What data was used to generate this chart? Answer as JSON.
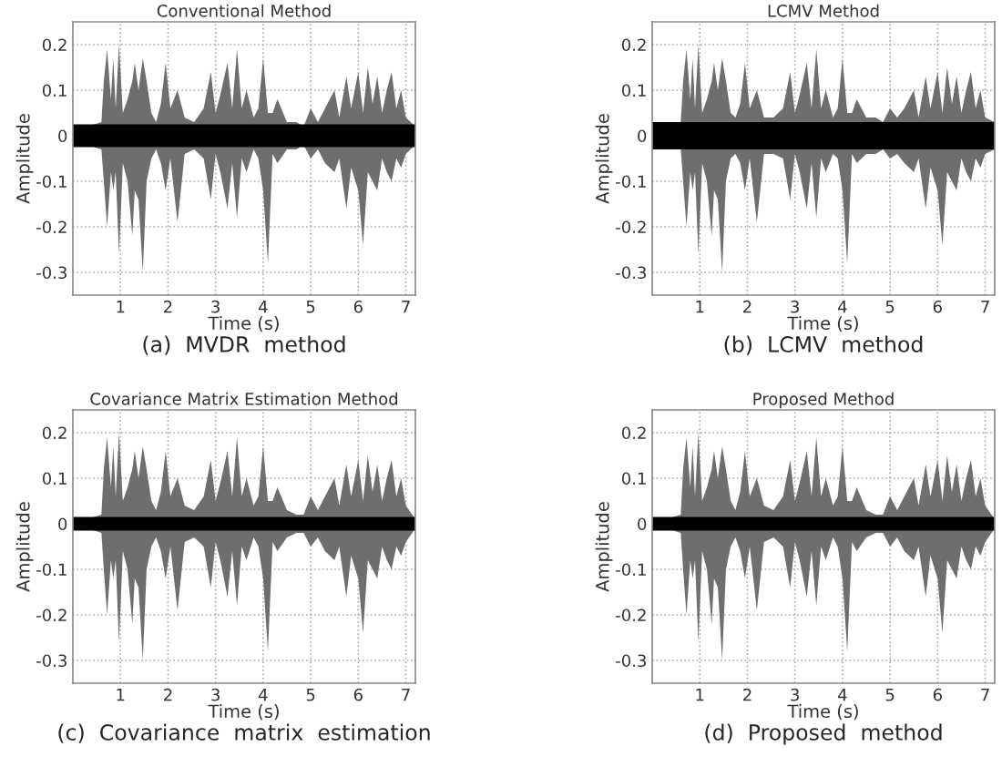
{
  "chart_data": [
    {
      "type": "area",
      "title": "Conventional Method",
      "xlabel": "Time (s)",
      "ylabel": "Amplitude",
      "annotations": [
        "(a)  MVDR  method"
      ],
      "xlim": [
        0,
        7.2
      ],
      "ylim": [
        -0.35,
        0.25
      ],
      "xticks": [
        1,
        2,
        3,
        4,
        5,
        6,
        7
      ],
      "yticks": [
        -0.3,
        -0.2,
        -0.1,
        0,
        0.1,
        0.2
      ],
      "grid": true,
      "series": [
        {
          "color": "#6e6e6e",
          "x": [
            0,
            0.3,
            0.6,
            0.65,
            0.72,
            0.8,
            0.85,
            0.9,
            0.97,
            1.05,
            1.15,
            1.25,
            1.3,
            1.38,
            1.47,
            1.55,
            1.65,
            1.75,
            1.85,
            1.95,
            2.05,
            2.2,
            2.35,
            2.55,
            2.75,
            2.9,
            3.0,
            3.1,
            3.25,
            3.35,
            3.45,
            3.55,
            3.65,
            3.8,
            3.9,
            4.0,
            4.1,
            4.2,
            4.3,
            4.5,
            4.7,
            4.85,
            5.0,
            5.15,
            5.3,
            5.5,
            5.6,
            5.75,
            5.85,
            6.0,
            6.1,
            6.2,
            6.3,
            6.4,
            6.5,
            6.6,
            6.7,
            6.8,
            6.9,
            7.0,
            7.2
          ],
          "values": [
            0.02,
            0.02,
            0.03,
            0.12,
            0.19,
            0.08,
            0.17,
            0.06,
            0.2,
            0.05,
            0.08,
            0.12,
            0.16,
            0.1,
            0.17,
            0.12,
            0.05,
            0.03,
            0.07,
            0.16,
            0.06,
            0.1,
            0.04,
            0.03,
            0.06,
            0.14,
            0.05,
            0.09,
            0.16,
            0.06,
            0.19,
            0.06,
            0.1,
            0.04,
            0.06,
            0.17,
            0.05,
            0.05,
            0.08,
            0.03,
            0.03,
            0.02,
            0.06,
            0.03,
            0.06,
            0.1,
            0.04,
            0.13,
            0.06,
            0.14,
            0.05,
            0.15,
            0.07,
            0.13,
            0.05,
            0.1,
            0.14,
            0.06,
            0.1,
            0.04,
            0.02
          ]
        },
        {
          "color": "#6e6e6e",
          "x": [
            0,
            0.3,
            0.6,
            0.65,
            0.72,
            0.8,
            0.85,
            0.9,
            0.97,
            1.05,
            1.15,
            1.25,
            1.3,
            1.38,
            1.47,
            1.55,
            1.65,
            1.75,
            1.85,
            1.95,
            2.05,
            2.2,
            2.35,
            2.55,
            2.75,
            2.9,
            3.0,
            3.1,
            3.25,
            3.35,
            3.45,
            3.55,
            3.65,
            3.8,
            3.9,
            4.0,
            4.1,
            4.2,
            4.3,
            4.5,
            4.7,
            4.85,
            5.0,
            5.15,
            5.3,
            5.5,
            5.6,
            5.75,
            5.85,
            6.0,
            6.1,
            6.2,
            6.3,
            6.4,
            6.5,
            6.6,
            6.7,
            6.8,
            6.9,
            7.0,
            7.2
          ],
          "values": [
            -0.02,
            -0.02,
            -0.03,
            -0.1,
            -0.2,
            -0.08,
            -0.12,
            -0.08,
            -0.26,
            -0.06,
            -0.1,
            -0.22,
            -0.12,
            -0.14,
            -0.3,
            -0.1,
            -0.05,
            -0.03,
            -0.06,
            -0.12,
            -0.05,
            -0.19,
            -0.04,
            -0.03,
            -0.05,
            -0.14,
            -0.04,
            -0.08,
            -0.16,
            -0.06,
            -0.18,
            -0.05,
            -0.08,
            -0.03,
            -0.05,
            -0.12,
            -0.28,
            -0.04,
            -0.06,
            -0.03,
            -0.03,
            -0.02,
            -0.05,
            -0.03,
            -0.06,
            -0.08,
            -0.05,
            -0.16,
            -0.07,
            -0.12,
            -0.24,
            -0.08,
            -0.1,
            -0.12,
            -0.05,
            -0.08,
            -0.1,
            -0.05,
            -0.07,
            -0.04,
            -0.02
          ]
        },
        {
          "color": "#000000",
          "x": [
            0,
            7.2
          ],
          "values": [
            0.025,
            0.025
          ]
        },
        {
          "color": "#000000",
          "x": [
            0,
            7.2
          ],
          "values": [
            -0.025,
            -0.025
          ]
        }
      ]
    },
    {
      "type": "area",
      "title": "LCMV Method",
      "xlabel": "Time (s)",
      "ylabel": "Amplitude",
      "annotations": [
        "(b)  LCMV  method"
      ],
      "xlim": [
        0,
        7.2
      ],
      "ylim": [
        -0.35,
        0.25
      ],
      "xticks": [
        1,
        2,
        3,
        4,
        5,
        6,
        7
      ],
      "yticks": [
        -0.3,
        -0.2,
        -0.1,
        0,
        0.1,
        0.2
      ],
      "grid": true,
      "series": [
        {
          "color": "#6e6e6e",
          "x": [
            0,
            0.3,
            0.6,
            0.65,
            0.72,
            0.8,
            0.85,
            0.9,
            0.97,
            1.05,
            1.15,
            1.25,
            1.3,
            1.38,
            1.47,
            1.55,
            1.65,
            1.75,
            1.85,
            1.95,
            2.05,
            2.2,
            2.35,
            2.55,
            2.75,
            2.9,
            3.0,
            3.1,
            3.25,
            3.35,
            3.45,
            3.55,
            3.65,
            3.8,
            3.9,
            4.0,
            4.1,
            4.2,
            4.3,
            4.5,
            4.7,
            4.85,
            5.0,
            5.15,
            5.3,
            5.5,
            5.6,
            5.75,
            5.85,
            6.0,
            6.1,
            6.2,
            6.3,
            6.4,
            6.5,
            6.6,
            6.7,
            6.8,
            6.9,
            7.0,
            7.2
          ],
          "values": [
            0.03,
            0.03,
            0.03,
            0.12,
            0.19,
            0.08,
            0.17,
            0.06,
            0.2,
            0.05,
            0.08,
            0.12,
            0.16,
            0.1,
            0.17,
            0.12,
            0.05,
            0.04,
            0.07,
            0.16,
            0.06,
            0.1,
            0.04,
            0.04,
            0.06,
            0.14,
            0.05,
            0.09,
            0.16,
            0.06,
            0.19,
            0.06,
            0.1,
            0.04,
            0.06,
            0.17,
            0.05,
            0.05,
            0.08,
            0.04,
            0.04,
            0.03,
            0.06,
            0.04,
            0.06,
            0.1,
            0.04,
            0.13,
            0.06,
            0.14,
            0.05,
            0.15,
            0.07,
            0.13,
            0.05,
            0.1,
            0.14,
            0.06,
            0.1,
            0.04,
            0.03
          ]
        },
        {
          "color": "#6e6e6e",
          "x": [
            0,
            0.3,
            0.6,
            0.65,
            0.72,
            0.8,
            0.85,
            0.9,
            0.97,
            1.05,
            1.15,
            1.25,
            1.3,
            1.38,
            1.47,
            1.55,
            1.65,
            1.75,
            1.85,
            1.95,
            2.05,
            2.2,
            2.35,
            2.55,
            2.75,
            2.9,
            3.0,
            3.1,
            3.25,
            3.35,
            3.45,
            3.55,
            3.65,
            3.8,
            3.9,
            4.0,
            4.1,
            4.2,
            4.3,
            4.5,
            4.7,
            4.85,
            5.0,
            5.15,
            5.3,
            5.5,
            5.6,
            5.75,
            5.85,
            6.0,
            6.1,
            6.2,
            6.3,
            6.4,
            6.5,
            6.6,
            6.7,
            6.8,
            6.9,
            7.0,
            7.2
          ],
          "values": [
            -0.03,
            -0.03,
            -0.03,
            -0.1,
            -0.2,
            -0.08,
            -0.12,
            -0.08,
            -0.26,
            -0.06,
            -0.1,
            -0.22,
            -0.12,
            -0.14,
            -0.3,
            -0.1,
            -0.05,
            -0.04,
            -0.06,
            -0.12,
            -0.05,
            -0.19,
            -0.04,
            -0.04,
            -0.05,
            -0.14,
            -0.04,
            -0.08,
            -0.16,
            -0.06,
            -0.18,
            -0.05,
            -0.08,
            -0.04,
            -0.05,
            -0.12,
            -0.28,
            -0.04,
            -0.06,
            -0.04,
            -0.04,
            -0.03,
            -0.05,
            -0.04,
            -0.06,
            -0.08,
            -0.05,
            -0.16,
            -0.07,
            -0.12,
            -0.24,
            -0.08,
            -0.1,
            -0.12,
            -0.05,
            -0.08,
            -0.1,
            -0.05,
            -0.07,
            -0.04,
            -0.03
          ]
        },
        {
          "color": "#000000",
          "x": [
            0,
            7.2
          ],
          "values": [
            0.03,
            0.03
          ]
        },
        {
          "color": "#000000",
          "x": [
            0,
            7.2
          ],
          "values": [
            -0.03,
            -0.03
          ]
        }
      ]
    },
    {
      "type": "area",
      "title": "Covariance Matrix Estimation Method",
      "xlabel": "Time (s)",
      "ylabel": "Amplitude",
      "annotations": [
        "(c)  Covariance  matrix  estimation"
      ],
      "xlim": [
        0,
        7.2
      ],
      "ylim": [
        -0.35,
        0.25
      ],
      "xticks": [
        1,
        2,
        3,
        4,
        5,
        6,
        7
      ],
      "yticks": [
        -0.3,
        -0.2,
        -0.1,
        0,
        0.1,
        0.2
      ],
      "grid": true,
      "series": [
        {
          "color": "#6e6e6e",
          "x": [
            0,
            0.3,
            0.6,
            0.65,
            0.72,
            0.8,
            0.85,
            0.9,
            0.97,
            1.05,
            1.15,
            1.25,
            1.3,
            1.38,
            1.47,
            1.55,
            1.65,
            1.75,
            1.85,
            1.95,
            2.05,
            2.2,
            2.35,
            2.55,
            2.75,
            2.9,
            3.0,
            3.1,
            3.25,
            3.35,
            3.45,
            3.55,
            3.65,
            3.8,
            3.9,
            4.0,
            4.1,
            4.2,
            4.3,
            4.5,
            4.7,
            4.85,
            5.0,
            5.15,
            5.3,
            5.5,
            5.6,
            5.75,
            5.85,
            6.0,
            6.1,
            6.2,
            6.3,
            6.4,
            6.5,
            6.6,
            6.7,
            6.8,
            6.9,
            7.0,
            7.2
          ],
          "values": [
            0.01,
            0.01,
            0.02,
            0.12,
            0.19,
            0.08,
            0.17,
            0.06,
            0.2,
            0.05,
            0.08,
            0.12,
            0.16,
            0.1,
            0.17,
            0.12,
            0.05,
            0.03,
            0.07,
            0.16,
            0.06,
            0.1,
            0.04,
            0.03,
            0.06,
            0.14,
            0.05,
            0.09,
            0.16,
            0.06,
            0.19,
            0.06,
            0.1,
            0.04,
            0.06,
            0.17,
            0.05,
            0.05,
            0.08,
            0.03,
            0.02,
            0.02,
            0.06,
            0.03,
            0.06,
            0.1,
            0.04,
            0.13,
            0.06,
            0.14,
            0.05,
            0.15,
            0.07,
            0.13,
            0.05,
            0.1,
            0.14,
            0.06,
            0.1,
            0.04,
            0.01
          ]
        },
        {
          "color": "#6e6e6e",
          "x": [
            0,
            0.3,
            0.6,
            0.65,
            0.72,
            0.8,
            0.85,
            0.9,
            0.97,
            1.05,
            1.15,
            1.25,
            1.3,
            1.38,
            1.47,
            1.55,
            1.65,
            1.75,
            1.85,
            1.95,
            2.05,
            2.2,
            2.35,
            2.55,
            2.75,
            2.9,
            3.0,
            3.1,
            3.25,
            3.35,
            3.45,
            3.55,
            3.65,
            3.8,
            3.9,
            4.0,
            4.1,
            4.2,
            4.3,
            4.5,
            4.7,
            4.85,
            5.0,
            5.15,
            5.3,
            5.5,
            5.6,
            5.75,
            5.85,
            6.0,
            6.1,
            6.2,
            6.3,
            6.4,
            6.5,
            6.6,
            6.7,
            6.8,
            6.9,
            7.0,
            7.2
          ],
          "values": [
            -0.01,
            -0.01,
            -0.02,
            -0.1,
            -0.2,
            -0.08,
            -0.12,
            -0.08,
            -0.26,
            -0.06,
            -0.1,
            -0.22,
            -0.12,
            -0.14,
            -0.3,
            -0.1,
            -0.05,
            -0.03,
            -0.06,
            -0.12,
            -0.05,
            -0.19,
            -0.04,
            -0.03,
            -0.05,
            -0.14,
            -0.04,
            -0.08,
            -0.16,
            -0.06,
            -0.18,
            -0.05,
            -0.08,
            -0.03,
            -0.05,
            -0.12,
            -0.28,
            -0.04,
            -0.06,
            -0.03,
            -0.02,
            -0.02,
            -0.05,
            -0.03,
            -0.06,
            -0.08,
            -0.05,
            -0.16,
            -0.07,
            -0.12,
            -0.24,
            -0.08,
            -0.1,
            -0.12,
            -0.05,
            -0.08,
            -0.1,
            -0.05,
            -0.07,
            -0.04,
            -0.01
          ]
        },
        {
          "color": "#000000",
          "x": [
            0,
            7.2
          ],
          "values": [
            0.015,
            0.015
          ]
        },
        {
          "color": "#000000",
          "x": [
            0,
            7.2
          ],
          "values": [
            -0.015,
            -0.015
          ]
        }
      ]
    },
    {
      "type": "area",
      "title": "Proposed Method",
      "xlabel": "Time (s)",
      "ylabel": "Amplitude",
      "annotations": [
        "(d)  Proposed  method"
      ],
      "xlim": [
        0,
        7.2
      ],
      "ylim": [
        -0.35,
        0.25
      ],
      "xticks": [
        1,
        2,
        3,
        4,
        5,
        6,
        7
      ],
      "yticks": [
        -0.3,
        -0.2,
        -0.1,
        0,
        0.1,
        0.2
      ],
      "grid": true,
      "series": [
        {
          "color": "#6e6e6e",
          "x": [
            0,
            0.3,
            0.6,
            0.65,
            0.72,
            0.8,
            0.85,
            0.9,
            0.97,
            1.05,
            1.15,
            1.25,
            1.3,
            1.38,
            1.47,
            1.55,
            1.65,
            1.75,
            1.85,
            1.95,
            2.05,
            2.2,
            2.35,
            2.55,
            2.75,
            2.9,
            3.0,
            3.1,
            3.25,
            3.35,
            3.45,
            3.55,
            3.65,
            3.8,
            3.9,
            4.0,
            4.1,
            4.2,
            4.3,
            4.5,
            4.7,
            4.85,
            5.0,
            5.15,
            5.3,
            5.5,
            5.6,
            5.75,
            5.85,
            6.0,
            6.1,
            6.2,
            6.3,
            6.4,
            6.5,
            6.6,
            6.7,
            6.8,
            6.9,
            7.0,
            7.2
          ],
          "values": [
            0.01,
            0.01,
            0.02,
            0.12,
            0.19,
            0.08,
            0.17,
            0.06,
            0.2,
            0.05,
            0.08,
            0.12,
            0.16,
            0.1,
            0.17,
            0.12,
            0.05,
            0.03,
            0.07,
            0.16,
            0.06,
            0.1,
            0.04,
            0.03,
            0.06,
            0.14,
            0.05,
            0.09,
            0.16,
            0.06,
            0.19,
            0.06,
            0.1,
            0.04,
            0.06,
            0.17,
            0.05,
            0.05,
            0.08,
            0.03,
            0.02,
            0.02,
            0.06,
            0.03,
            0.06,
            0.1,
            0.04,
            0.13,
            0.06,
            0.14,
            0.05,
            0.15,
            0.07,
            0.13,
            0.05,
            0.1,
            0.14,
            0.06,
            0.1,
            0.04,
            0.01
          ]
        },
        {
          "color": "#6e6e6e",
          "x": [
            0,
            0.3,
            0.6,
            0.65,
            0.72,
            0.8,
            0.85,
            0.9,
            0.97,
            1.05,
            1.15,
            1.25,
            1.3,
            1.38,
            1.47,
            1.55,
            1.65,
            1.75,
            1.85,
            1.95,
            2.05,
            2.2,
            2.35,
            2.55,
            2.75,
            2.9,
            3.0,
            3.1,
            3.25,
            3.35,
            3.45,
            3.55,
            3.65,
            3.8,
            3.9,
            4.0,
            4.1,
            4.2,
            4.3,
            4.5,
            4.7,
            4.85,
            5.0,
            5.15,
            5.3,
            5.5,
            5.6,
            5.75,
            5.85,
            6.0,
            6.1,
            6.2,
            6.3,
            6.4,
            6.5,
            6.6,
            6.7,
            6.8,
            6.9,
            7.0,
            7.2
          ],
          "values": [
            -0.01,
            -0.01,
            -0.02,
            -0.1,
            -0.2,
            -0.08,
            -0.12,
            -0.08,
            -0.26,
            -0.06,
            -0.1,
            -0.22,
            -0.12,
            -0.14,
            -0.3,
            -0.1,
            -0.05,
            -0.03,
            -0.06,
            -0.12,
            -0.05,
            -0.19,
            -0.04,
            -0.03,
            -0.05,
            -0.14,
            -0.04,
            -0.08,
            -0.16,
            -0.06,
            -0.18,
            -0.05,
            -0.08,
            -0.03,
            -0.05,
            -0.12,
            -0.28,
            -0.04,
            -0.06,
            -0.03,
            -0.02,
            -0.02,
            -0.05,
            -0.03,
            -0.06,
            -0.08,
            -0.05,
            -0.16,
            -0.07,
            -0.12,
            -0.24,
            -0.08,
            -0.1,
            -0.12,
            -0.05,
            -0.08,
            -0.1,
            -0.05,
            -0.07,
            -0.04,
            -0.01
          ]
        },
        {
          "color": "#000000",
          "x": [
            0,
            7.2
          ],
          "values": [
            0.015,
            0.015
          ]
        },
        {
          "color": "#000000",
          "x": [
            0,
            7.2
          ],
          "values": [
            -0.015,
            -0.015
          ]
        }
      ]
    }
  ]
}
